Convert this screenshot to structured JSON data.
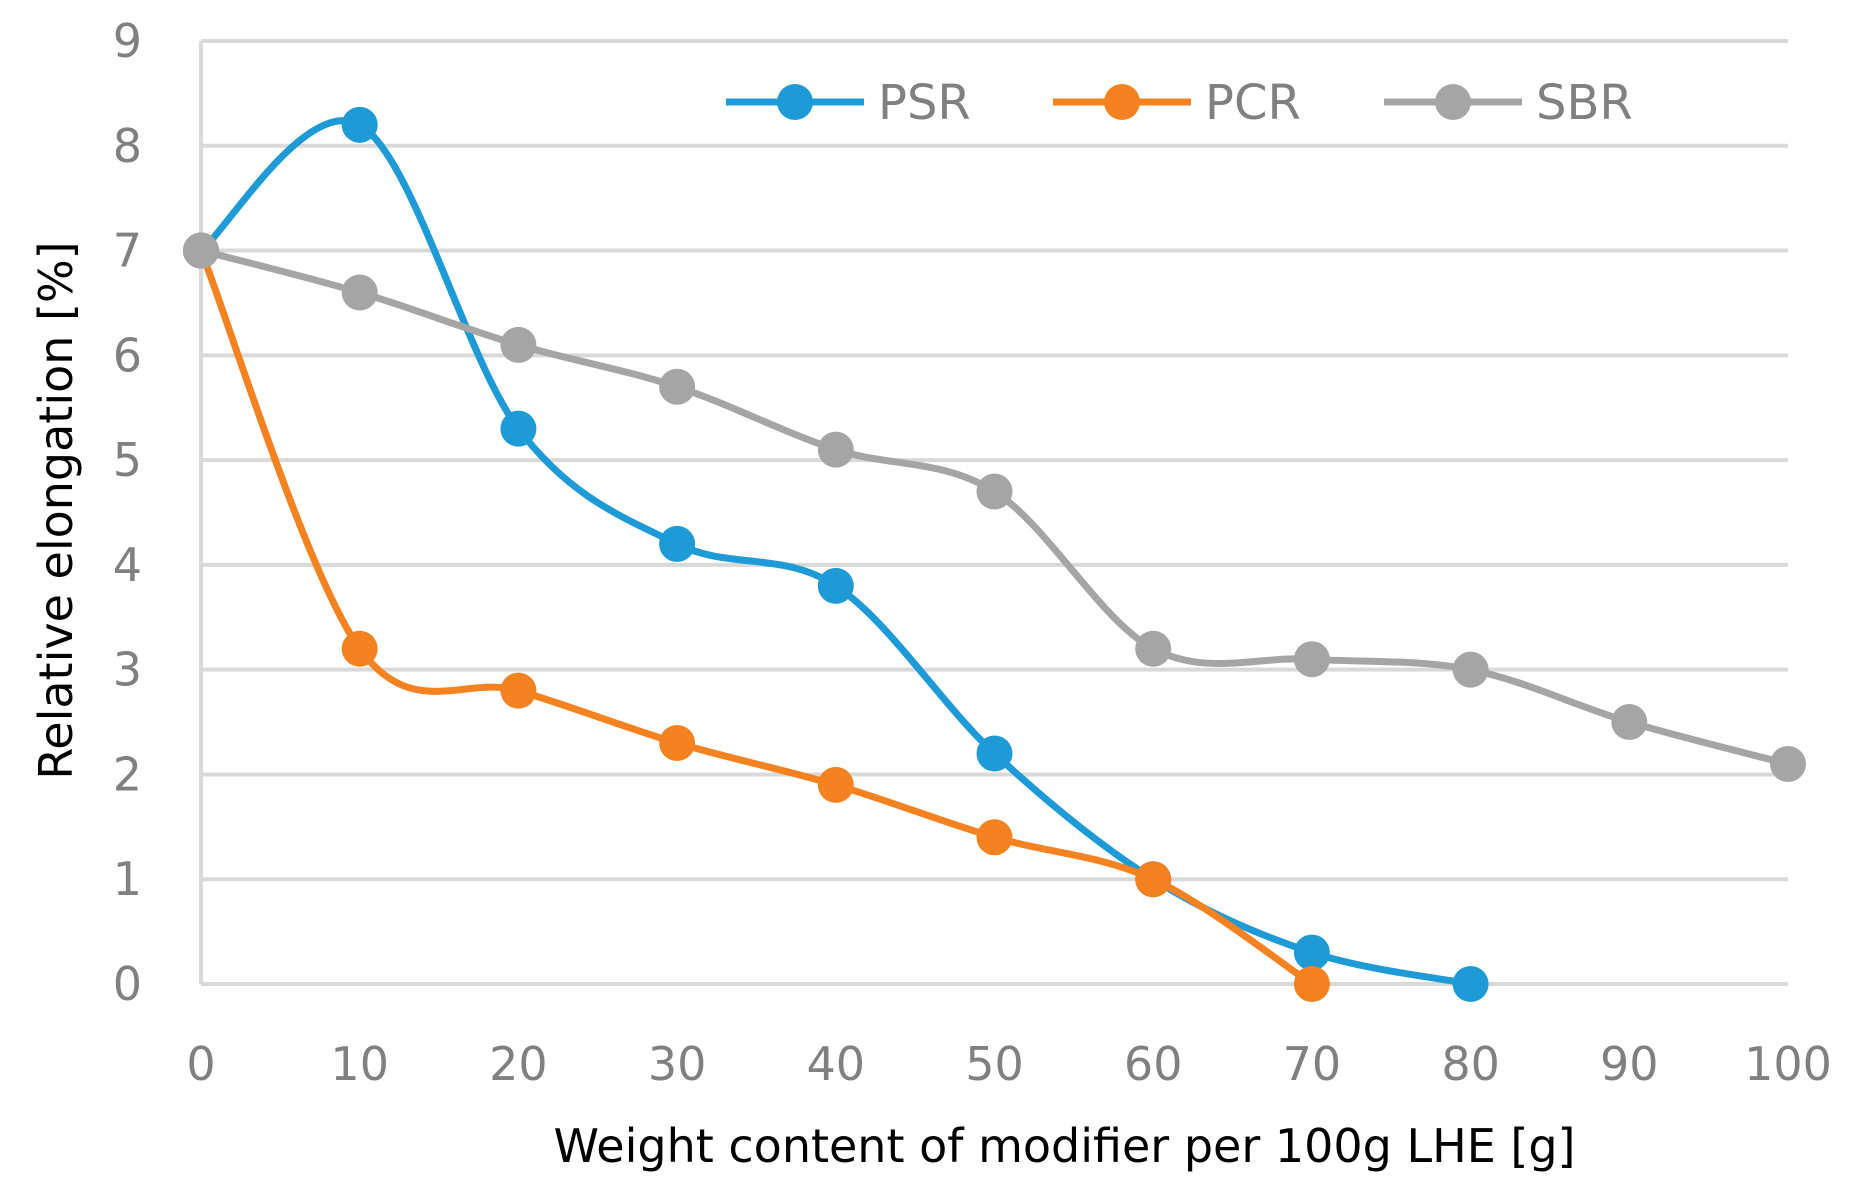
{
  "chart_data": {
    "type": "line",
    "title": "",
    "xlabel": "Weight content of modifier per 100g LHE [g]",
    "ylabel": "Relative  elongation  [%]",
    "xlim": [
      0,
      100
    ],
    "ylim": [
      0,
      9
    ],
    "xticks": [
      "0",
      "10",
      "20",
      "30",
      "40",
      "50",
      "60",
      "70",
      "80",
      "90",
      "100"
    ],
    "yticks": [
      "0",
      "1",
      "2",
      "3",
      "4",
      "5",
      "6",
      "7",
      "8",
      "9"
    ],
    "grid": "horizontal",
    "legend_position": "top-right",
    "series": [
      {
        "name": "PSR",
        "color": "#1e9bd7",
        "x": [
          0,
          10,
          20,
          30,
          40,
          50,
          60,
          70,
          80
        ],
        "values": [
          7.0,
          8.2,
          5.3,
          4.2,
          3.8,
          2.2,
          1.0,
          0.3,
          0.0
        ]
      },
      {
        "name": "PCR",
        "color": "#f58220",
        "x": [
          0,
          10,
          20,
          30,
          40,
          50,
          60,
          70
        ],
        "values": [
          7.0,
          3.2,
          2.8,
          2.3,
          1.9,
          1.4,
          1.0,
          0.0
        ]
      },
      {
        "name": "SBR",
        "color": "#a5a5a5",
        "x": [
          0,
          10,
          20,
          30,
          40,
          50,
          60,
          70,
          80,
          90,
          100
        ],
        "values": [
          7.0,
          6.6,
          6.1,
          5.7,
          5.1,
          4.7,
          3.2,
          3.1,
          3.0,
          2.5,
          2.1
        ]
      }
    ]
  }
}
